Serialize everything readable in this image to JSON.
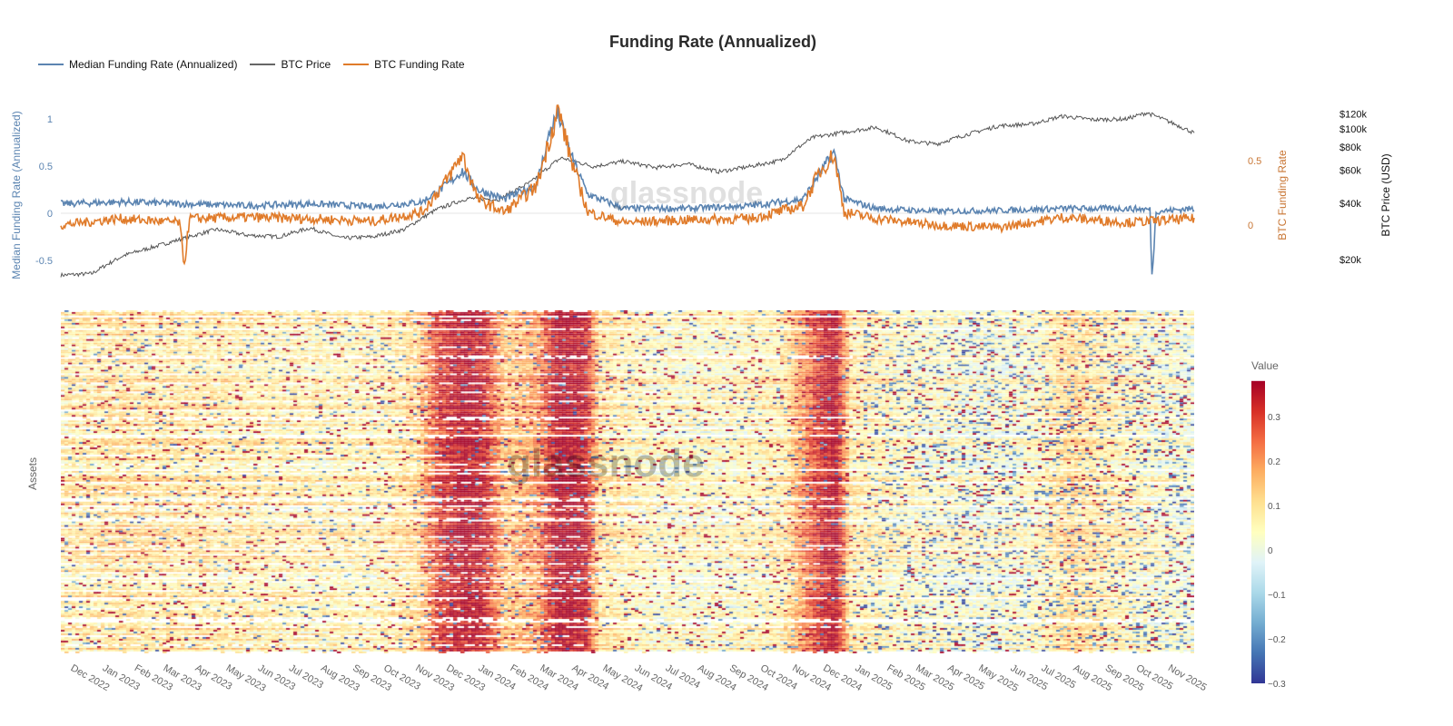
{
  "title": "Funding Rate (Annualized)",
  "legend": [
    {
      "name": "Median Funding Rate (Annualized)",
      "color": "#5b84b1"
    },
    {
      "name": "BTC Price",
      "color": "#555555"
    },
    {
      "name": "BTC Funding Rate",
      "color": "#e07b2a"
    }
  ],
  "watermark": "glassnode",
  "chart_data": [
    {
      "type": "line",
      "y_left": {
        "label": "Median Funding Rate (Annualized)",
        "ticks": [
          "1",
          "0.5",
          "0",
          "-0.5"
        ],
        "range": [
          -0.65,
          1.1
        ],
        "color": "#5b84b1"
      },
      "y_right": {
        "label": "BTC Funding Rate",
        "ticks": [
          "0.5",
          "0"
        ],
        "range": [
          -0.3,
          0.9
        ],
        "color": "#c87533"
      },
      "y_price": {
        "label": "BTC Price (USD)",
        "scale": "log",
        "ticks": [
          "$120k",
          "$100k",
          "$80k",
          "$60k",
          "$40k",
          "$20k"
        ],
        "tick_values": [
          120000,
          100000,
          80000,
          60000,
          40000,
          20000
        ]
      },
      "series": [
        {
          "name": "BTC Price",
          "axis": "price",
          "x": [
            "2022-11-15",
            "2022-12-15",
            "2023-01-15",
            "2023-02-15",
            "2023-03-15",
            "2023-04-15",
            "2023-05-15",
            "2023-06-15",
            "2023-07-15",
            "2023-08-15",
            "2023-09-15",
            "2023-10-15",
            "2023-11-15",
            "2023-12-15",
            "2024-01-15",
            "2024-02-15",
            "2024-03-15",
            "2024-04-15",
            "2024-05-15",
            "2024-06-15",
            "2024-07-15",
            "2024-08-15",
            "2024-09-15",
            "2024-10-15",
            "2024-11-15",
            "2024-12-15",
            "2025-01-15",
            "2025-02-15",
            "2025-03-15",
            "2025-04-15",
            "2025-05-15",
            "2025-06-15",
            "2025-07-15",
            "2025-08-15",
            "2025-09-15",
            "2025-10-05",
            "2025-11-20"
          ],
          "y": [
            16500,
            16800,
            21000,
            23500,
            26000,
            29000,
            27000,
            26500,
            29500,
            26000,
            26500,
            29000,
            37000,
            42500,
            42000,
            52000,
            70000,
            63000,
            67000,
            62000,
            65000,
            59000,
            63000,
            68000,
            90000,
            96000,
            102000,
            86000,
            83000,
            94000,
            104000,
            106000,
            117000,
            112000,
            113000,
            122000,
            95000
          ]
        },
        {
          "name": "Median Funding Rate (Annualized)",
          "axis": "left",
          "x": [
            "2022-11-15",
            "2023-01-15",
            "2023-03-15",
            "2023-05-15",
            "2023-07-15",
            "2023-09-15",
            "2023-11-01",
            "2023-11-25",
            "2023-12-10",
            "2023-12-25",
            "2024-01-20",
            "2024-02-20",
            "2024-03-05",
            "2024-03-12",
            "2024-03-25",
            "2024-04-10",
            "2024-05-15",
            "2024-07-15",
            "2024-09-15",
            "2024-11-05",
            "2024-11-20",
            "2024-12-05",
            "2024-12-15",
            "2025-01-15",
            "2025-03-15",
            "2025-05-15",
            "2025-07-15",
            "2025-09-15",
            "2025-10-08",
            "2025-10-10",
            "2025-10-14",
            "2025-11-20"
          ],
          "y": [
            0.1,
            0.12,
            0.1,
            0.08,
            0.1,
            0.07,
            0.12,
            0.3,
            0.45,
            0.25,
            0.15,
            0.3,
            0.9,
            1.05,
            0.6,
            0.2,
            0.05,
            0.05,
            0.08,
            0.15,
            0.4,
            0.65,
            0.15,
            0.05,
            0.02,
            0.03,
            0.05,
            0.05,
            0.04,
            -0.68,
            0.02,
            0.05
          ]
        },
        {
          "name": "BTC Funding Rate",
          "axis": "right",
          "x": [
            "2022-11-15",
            "2023-01-10",
            "2023-03-10",
            "2023-03-15",
            "2023-03-20",
            "2023-05-15",
            "2023-07-15",
            "2023-09-15",
            "2023-11-01",
            "2023-11-25",
            "2023-12-10",
            "2023-12-25",
            "2024-01-20",
            "2024-02-20",
            "2024-03-05",
            "2024-03-12",
            "2024-03-25",
            "2024-04-10",
            "2024-05-15",
            "2024-07-15",
            "2024-09-15",
            "2024-11-05",
            "2024-11-20",
            "2024-12-05",
            "2024-12-15",
            "2025-01-15",
            "2025-03-15",
            "2025-05-15",
            "2025-07-15",
            "2025-09-15",
            "2025-11-20"
          ],
          "y": [
            0.0,
            0.05,
            0.02,
            -0.3,
            0.05,
            0.06,
            0.05,
            0.03,
            0.1,
            0.35,
            0.55,
            0.2,
            0.1,
            0.3,
            0.7,
            0.9,
            0.5,
            0.1,
            0.02,
            0.04,
            0.05,
            0.15,
            0.4,
            0.55,
            0.1,
            0.05,
            0.0,
            -0.02,
            0.06,
            0.02,
            0.05
          ]
        }
      ]
    },
    {
      "type": "heatmap",
      "ylabel": "Assets",
      "colorbar": {
        "title": "Value",
        "ticks": [
          "0.3",
          "0.2",
          "0.1",
          "0",
          "−0.1",
          "−0.2",
          "−0.3"
        ],
        "tick_values": [
          0.3,
          0.2,
          0.1,
          0,
          -0.1,
          -0.2,
          -0.3
        ],
        "range": [
          -0.3,
          0.38
        ],
        "colorscale": [
          "#313695",
          "#4575b4",
          "#74add1",
          "#abd9e9",
          "#e0f3f8",
          "#ffffbf",
          "#fee090",
          "#fdae61",
          "#f46d43",
          "#d73027",
          "#a50026"
        ]
      },
      "x_ticks": [
        "Dec 2022",
        "Jan 2023",
        "Feb 2023",
        "Mar 2023",
        "Apr 2023",
        "May 2023",
        "Jun 2023",
        "Jul 2023",
        "Aug 2023",
        "Sep 2023",
        "Oct 2023",
        "Nov 2023",
        "Dec 2023",
        "Jan 2024",
        "Feb 2024",
        "Mar 2024",
        "Apr 2024",
        "May 2024",
        "Jun 2024",
        "Jul 2024",
        "Aug 2024",
        "Sep 2024",
        "Oct 2024",
        "Nov 2024",
        "Dec 2024",
        "Jan 2025",
        "Feb 2025",
        "Mar 2025",
        "Apr 2025",
        "May 2025",
        "Jun 2025",
        "Jul 2025",
        "Aug 2025",
        "Sep 2025",
        "Oct 2025",
        "Nov 2025"
      ],
      "monthly_typical_value": {
        "x": [
          "2022-11-15",
          "2023-01-15",
          "2023-03-15",
          "2023-05-15",
          "2023-07-15",
          "2023-09-15",
          "2023-10-25",
          "2023-11-15",
          "2023-12-10",
          "2023-12-28",
          "2024-01-20",
          "2024-02-20",
          "2024-03-10",
          "2024-04-05",
          "2024-04-20",
          "2024-06-15",
          "2024-08-15",
          "2024-10-15",
          "2024-11-20",
          "2024-12-05",
          "2024-12-20",
          "2025-02-15",
          "2025-04-15",
          "2025-06-15",
          "2025-07-20",
          "2025-09-15",
          "2025-11-20"
        ],
        "y": [
          0.08,
          0.1,
          0.09,
          0.08,
          0.07,
          0.07,
          0.12,
          0.3,
          0.38,
          0.35,
          0.14,
          0.2,
          0.38,
          0.36,
          0.1,
          0.05,
          0.05,
          0.08,
          0.32,
          0.38,
          0.08,
          0.05,
          0.03,
          0.04,
          0.12,
          0.06,
          0.02
        ]
      }
    }
  ]
}
